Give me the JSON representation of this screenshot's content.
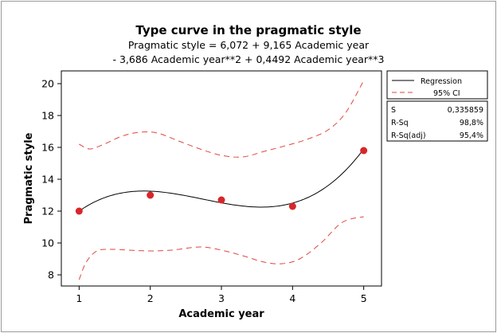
{
  "chart_data": {
    "type": "line",
    "title": "Type curve in the pragmatic style",
    "subtitle_line1": "Pragmatic style =  6,072 + 9,165 Academic year",
    "subtitle_line2": "- 3,686 Academic year**2 + 0,4492 Academic year**3",
    "xlabel": "Academic year",
    "ylabel": "Pragmatic style",
    "xlim": [
      0.75,
      5.25
    ],
    "ylim": [
      7.3,
      20.8
    ],
    "x_ticks": [
      "1",
      "2",
      "3",
      "4",
      "5"
    ],
    "y_ticks": [
      "8",
      "10",
      "12",
      "14",
      "16",
      "18",
      "20"
    ],
    "points": [
      {
        "x": 1,
        "y": 12.0
      },
      {
        "x": 2,
        "y": 13.0
      },
      {
        "x": 3,
        "y": 12.7
      },
      {
        "x": 4,
        "y": 12.3
      },
      {
        "x": 5,
        "y": 15.8
      }
    ],
    "regression": {
      "name": "Regression",
      "coefficients": [
        6.072,
        9.165,
        -3.686,
        0.4492
      ],
      "color": "#000000"
    },
    "ci_upper": {
      "name": "95% CI",
      "color": "#e0463c",
      "x": [
        1,
        1.15,
        1.35,
        1.6,
        1.85,
        2.1,
        2.4,
        2.7,
        3.0,
        3.3,
        3.6,
        3.9,
        4.2,
        4.5,
        4.75,
        5.0
      ],
      "y": [
        16.2,
        15.9,
        16.2,
        16.7,
        16.95,
        16.9,
        16.4,
        15.9,
        15.5,
        15.4,
        15.75,
        16.1,
        16.5,
        17.1,
        18.2,
        20.2
      ]
    },
    "ci_lower": {
      "name": "95% CI",
      "color": "#e0463c",
      "x": [
        1,
        1.1,
        1.25,
        1.45,
        1.7,
        2.0,
        2.3,
        2.7,
        3.0,
        3.3,
        3.6,
        3.85,
        4.1,
        4.4,
        4.7,
        5.0
      ],
      "y": [
        7.7,
        8.8,
        9.5,
        9.6,
        9.55,
        9.5,
        9.55,
        9.75,
        9.55,
        9.2,
        8.8,
        8.7,
        9.0,
        10.0,
        11.3,
        11.65
      ]
    },
    "legend": {
      "position": "right",
      "entries": [
        "Regression",
        "95% CI"
      ]
    },
    "stats": [
      {
        "label": "S",
        "value": "0,335859"
      },
      {
        "label": "R-Sq",
        "value": "98,8%"
      },
      {
        "label": "R-Sq(adj)",
        "value": "95,4%"
      }
    ],
    "point_color": "#d8262a",
    "grid": false
  }
}
